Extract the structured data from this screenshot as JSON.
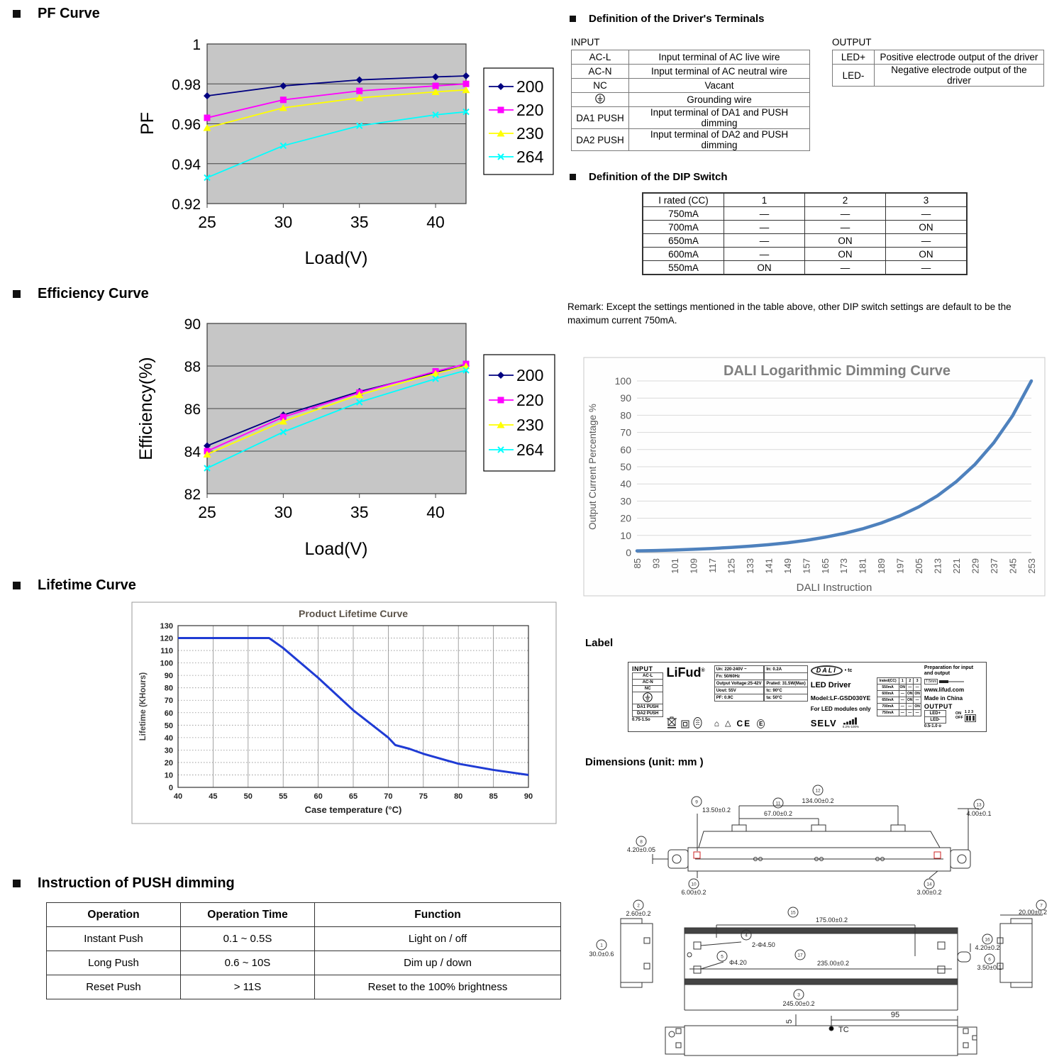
{
  "sections": {
    "pf_title": "PF Curve",
    "efficiency_title": "Efficiency Curve",
    "lifetime_title": "Lifetime Curve",
    "push_title": "Instruction of PUSH dimming",
    "terminals_title": "Definition of the Driver's Terminals",
    "dip_title": "Definition of the DIP Switch",
    "label_title": "Label",
    "dimensions_title": "Dimensions (unit: mm )"
  },
  "terminals": {
    "input_title": "INPUT",
    "output_title": "OUTPUT",
    "input_rows": [
      [
        "AC-L",
        "Input terminal of AC live wire"
      ],
      [
        "AC-N",
        "Input terminal of AC neutral wire"
      ],
      [
        "NC",
        "Vacant"
      ],
      [
        "⏚",
        "Grounding wire"
      ],
      [
        "DA1 PUSH",
        "Input terminal of DA1 and PUSH dimming"
      ],
      [
        "DA2 PUSH",
        "Input terminal of DA2 and PUSH dimming"
      ]
    ],
    "output_rows": [
      [
        "LED+",
        "Positive electrode output of the driver"
      ],
      [
        "LED-",
        "Negative electrode output of the driver"
      ]
    ]
  },
  "dip": {
    "header": [
      "I rated (CC)",
      "1",
      "2",
      "3"
    ],
    "rows": [
      [
        "750mA",
        "—",
        "—",
        "—"
      ],
      [
        "700mA",
        "—",
        "—",
        "ON"
      ],
      [
        "650mA",
        "—",
        "ON",
        "—"
      ],
      [
        "600mA",
        "—",
        "ON",
        "ON"
      ],
      [
        "550mA",
        "ON",
        "—",
        "—"
      ]
    ],
    "remark": "Remark: Except the settings mentioned in the table above, other DIP switch settings are default to be the maximum current 750mA."
  },
  "push": {
    "header": [
      "Operation",
      "Operation Time",
      "Function"
    ],
    "rows": [
      [
        "Instant Push",
        "0.1 ~ 0.5S",
        "Light on / off"
      ],
      [
        "Long Push",
        "0.6 ~ 10S",
        "Dim up / down"
      ],
      [
        "Reset Push",
        ">  11S",
        "Reset to the 100% brightness"
      ]
    ]
  },
  "label": {
    "input_title": "INPUT",
    "input_cells": [
      [
        "AC-L"
      ],
      [
        "AC-N"
      ],
      [
        "NC"
      ],
      [
        "⏚"
      ],
      [
        "DA1 PUSH"
      ],
      [
        "DA2 PUSH"
      ]
    ],
    "input_wire": "0.75-1.5o",
    "brand": "LiFud",
    "brand_reg": "®",
    "specs_left": [
      [
        "Un:  220-240V ~"
      ],
      [
        "Fn:  50/60Hz"
      ],
      [
        "Output Voltage:25-42V"
      ],
      [
        "Uout:  55V"
      ],
      [
        "PF:  0.9C"
      ]
    ],
    "specs_right": [
      [
        "In:  0.2A"
      ],
      [
        ""
      ],
      [
        "Prated: 31.5W(Max)"
      ],
      [
        "tc:  90°C"
      ],
      [
        "ta:  50°C"
      ]
    ],
    "dali": "DALI",
    "tc_mark": "• tc",
    "product": "LED Driver",
    "model": "Model:LF-GSD030YE",
    "note": "For LED modules only",
    "selv": "SELV",
    "dim_range": "0.2%-100%",
    "mini_dip": {
      "header": [
        "Irated(CC)",
        "1",
        "2",
        "3"
      ],
      "rows": [
        [
          "550mA",
          "ON",
          "—",
          "—"
        ],
        [
          "600mA",
          "—",
          "ON",
          "ON"
        ],
        [
          "650mA",
          "—",
          "ON",
          "—"
        ],
        [
          "700mA",
          "—",
          "—",
          "ON"
        ],
        [
          "750mA",
          "—",
          "—",
          "—"
        ]
      ]
    },
    "preparation": "Preparation for input and output",
    "strip_len": "7.5mm",
    "website": "www.lifud.com",
    "origin": "Made in China",
    "output_title": "OUTPUT",
    "output_cells": [
      [
        "LED+"
      ],
      [
        "LED-"
      ]
    ],
    "output_wire": "0.5-1.0 o",
    "dip_on": "ON",
    "dip_off": "OFF",
    "dip_nums": "1 2 3",
    "ce": "CE"
  },
  "dimensions": {
    "labels": [
      {
        "n": "1",
        "text": "30.0±0.6"
      },
      {
        "n": "2",
        "text": "2.60±0.2"
      },
      {
        "n": "3",
        "text": "245.00±0.2"
      },
      {
        "n": "4",
        "text": "2-Φ4.50"
      },
      {
        "n": "5",
        "text": "Φ4.20"
      },
      {
        "n": "6",
        "text": "3.50±0.1"
      },
      {
        "n": "7",
        "text": "20.00±0.2"
      },
      {
        "n": "8",
        "text": "4.20±0.05"
      },
      {
        "n": "9",
        "text": "13.50±0.2"
      },
      {
        "n": "10",
        "text": "6.00±0.2"
      },
      {
        "n": "11",
        "text": "67.00±0.2"
      },
      {
        "n": "12",
        "text": "134.00±0.2"
      },
      {
        "n": "13",
        "text": "4.00±0.1"
      },
      {
        "n": "14",
        "text": "3.00±0.2"
      },
      {
        "n": "15",
        "text": "175.00±0.2"
      },
      {
        "n": "16",
        "text": "4.20±0.2"
      },
      {
        "n": "17",
        "text": "235.00±0.2"
      }
    ],
    "plain": [
      {
        "text": "95"
      },
      {
        "text": "5"
      },
      {
        "text": "TC"
      }
    ]
  },
  "chart_data": [
    {
      "id": "pf",
      "type": "line",
      "title": "",
      "xlabel": "Load(V)",
      "ylabel": "PF",
      "x": [
        25,
        30,
        35,
        40,
        42
      ],
      "xticks": [
        25,
        30,
        35,
        40
      ],
      "ylim": [
        0.92,
        1.0
      ],
      "yticks": [
        0.92,
        0.94,
        0.96,
        0.98,
        1
      ],
      "ytick_labels": [
        "0.92",
        "0.94",
        "0.96",
        "0.98",
        "1"
      ],
      "plot_bg": "#c6c6c6",
      "grid": true,
      "legend_position": "right",
      "series": [
        {
          "name": "200",
          "color": "#000080",
          "marker": "diamond",
          "values": [
            0.974,
            0.979,
            0.982,
            0.9835,
            0.984
          ]
        },
        {
          "name": "220",
          "color": "#ff00ff",
          "marker": "square",
          "values": [
            0.963,
            0.972,
            0.9765,
            0.979,
            0.98
          ]
        },
        {
          "name": "230",
          "color": "#ffff00",
          "marker": "triangle",
          "values": [
            0.958,
            0.968,
            0.973,
            0.976,
            0.977
          ]
        },
        {
          "name": "264",
          "color": "#00ffff",
          "marker": "x",
          "values": [
            0.933,
            0.949,
            0.959,
            0.9645,
            0.966
          ]
        }
      ]
    },
    {
      "id": "efficiency",
      "type": "line",
      "title": "",
      "xlabel": "Load(V)",
      "ylabel": "Efficiency(%)",
      "x": [
        25,
        30,
        35,
        40,
        42
      ],
      "xticks": [
        25,
        30,
        35,
        40
      ],
      "ylim": [
        82,
        90
      ],
      "yticks": [
        82,
        84,
        86,
        88,
        90
      ],
      "ytick_labels": [
        "82",
        "84",
        "86",
        "88",
        "90"
      ],
      "plot_bg": "#c6c6c6",
      "grid": true,
      "legend_position": "right",
      "series": [
        {
          "name": "200",
          "color": "#000080",
          "marker": "diamond",
          "values": [
            84.25,
            85.7,
            86.8,
            87.7,
            88.0
          ]
        },
        {
          "name": "220",
          "color": "#ff00ff",
          "marker": "square",
          "values": [
            84.0,
            85.6,
            86.75,
            87.75,
            88.1
          ]
        },
        {
          "name": "230",
          "color": "#ffff00",
          "marker": "triangle",
          "values": [
            83.85,
            85.4,
            86.65,
            87.65,
            88.0
          ]
        },
        {
          "name": "264",
          "color": "#00ffff",
          "marker": "x",
          "values": [
            83.2,
            84.9,
            86.3,
            87.4,
            87.8
          ]
        }
      ]
    },
    {
      "id": "lifetime",
      "type": "line",
      "title": "Product Lifetime Curve",
      "xlabel": "Case temperature (°C)",
      "ylabel": "Lifetime (KHours)",
      "xlim": [
        40,
        90
      ],
      "xticks": [
        40,
        45,
        50,
        55,
        60,
        65,
        70,
        75,
        80,
        85,
        90
      ],
      "ylim": [
        0,
        130
      ],
      "yticks": [
        0,
        10,
        20,
        30,
        40,
        50,
        60,
        70,
        80,
        90,
        100,
        110,
        120,
        130
      ],
      "line_color": "#1f3bd4",
      "grid": true,
      "points": [
        [
          40,
          120
        ],
        [
          53,
          120
        ],
        [
          55,
          112
        ],
        [
          60,
          88
        ],
        [
          65,
          62
        ],
        [
          70,
          40
        ],
        [
          71,
          34
        ],
        [
          73,
          31
        ],
        [
          75,
          27
        ],
        [
          80,
          19
        ],
        [
          81,
          18
        ],
        [
          85,
          14
        ],
        [
          90,
          10
        ]
      ]
    },
    {
      "id": "dali",
      "type": "line",
      "title": "DALI Logarithmic Dimming Curve",
      "xlabel": "DALI Instruction",
      "ylabel": "Output Current Percentage  %",
      "categories": [
        85,
        93,
        101,
        109,
        117,
        125,
        133,
        141,
        149,
        157,
        165,
        173,
        181,
        189,
        197,
        205,
        213,
        221,
        229,
        237,
        245,
        253
      ],
      "values": [
        1.0,
        1.2,
        1.5,
        1.9,
        2.4,
        3.0,
        3.7,
        4.6,
        5.7,
        7.1,
        8.9,
        11.1,
        13.8,
        17.2,
        21.4,
        26.6,
        33.1,
        41.3,
        51.4,
        64.0,
        79.7,
        100
      ],
      "ylim": [
        0,
        100
      ],
      "yticks": [
        0,
        10,
        20,
        30,
        40,
        50,
        60,
        70,
        80,
        90,
        100
      ],
      "line_color": "#4e81bd",
      "grid": true
    }
  ]
}
